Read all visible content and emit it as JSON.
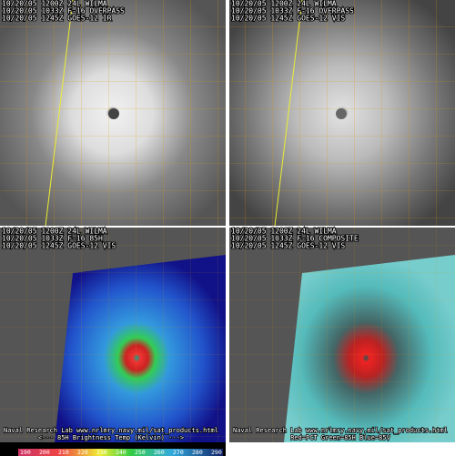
{
  "panels": [
    {
      "lines": [
        "10/20/05 1200Z 24L WILMA",
        "10/20/05 1033Z F-16 OVERPASS",
        "10/20/05 1245Z GOES-12 IR"
      ]
    },
    {
      "lines": [
        "10/20/05 1200Z 24L WILMA",
        "10/20/05 1033Z F-16 OVERPASS",
        "10/20/05 1245Z GOES-12 VIS"
      ]
    },
    {
      "lines": [
        "10/20/05 1200Z 24L WILMA",
        "10/20/05 1033Z F-16 85H",
        "10/20/05 1245Z GOES-12 VIS"
      ],
      "footer": [
        "Naval Research Lab  www.nrlmry.navy.mil/sat_products.html",
        "<---  85H Brightness Temp (Kelvin)  --->"
      ],
      "colorbar": [
        190,
        200,
        210,
        220,
        230,
        240,
        250,
        260,
        270,
        280,
        290
      ]
    },
    {
      "lines": [
        "10/20/05 1200Z 24L WILMA",
        "10/20/05 1033Z F-16 COMPOSITE",
        "10/20/05 1245Z GOES-12 VIS"
      ],
      "footer": [
        "Naval Research Lab  www.nrlmry.navy.mil/sat_products.html",
        "Red=PCT  Green=85H  Blue=85V"
      ]
    }
  ]
}
